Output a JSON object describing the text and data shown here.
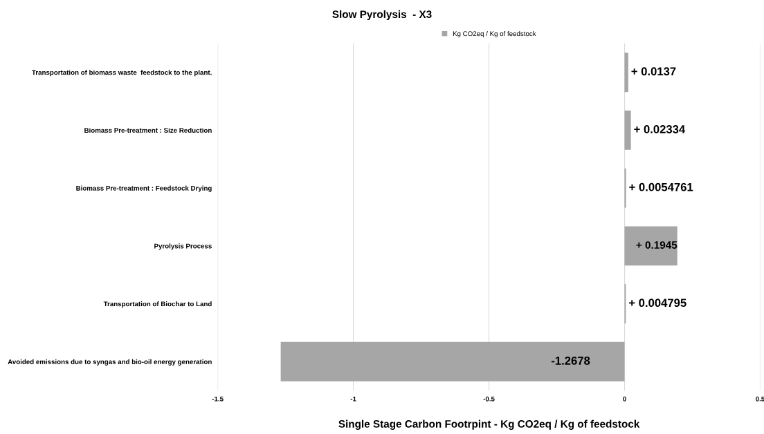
{
  "chart_data": {
    "type": "bar",
    "orientation": "horizontal",
    "title": "Slow Pyrolysis  - X3",
    "xlabel": "Single Stage Carbon Footrpint - Kg CO2eq / Kg of feedstock",
    "categories": [
      "Transportation of biomass waste  feedstock to the plant.",
      "Biomass Pre-treatment : Size Reduction",
      "Biomass Pre-treatment : Feedstock Drying",
      "Pyrolysis Process",
      "Transportation of Biochar to Land",
      "Avoided emissions due to syngas and bio-oil energy generation"
    ],
    "series": [
      {
        "name": "Kg CO2eq / Kg of feedstock",
        "color": "#a6a6a6",
        "values": [
          0.0137,
          0.02334,
          0.0054761,
          0.1945,
          0.004795,
          -1.2678
        ],
        "value_labels": [
          "+ 0.0137",
          "+ 0.02334",
          "+ 0.0054761",
          "+ 0.1945",
          "+ 0.004795",
          "-1.2678"
        ]
      }
    ],
    "xlim": [
      -1.5,
      0.5
    ],
    "xticks": [
      -1.5,
      -1,
      -0.5,
      0,
      0.5
    ],
    "grid": "x",
    "legend": "top"
  }
}
